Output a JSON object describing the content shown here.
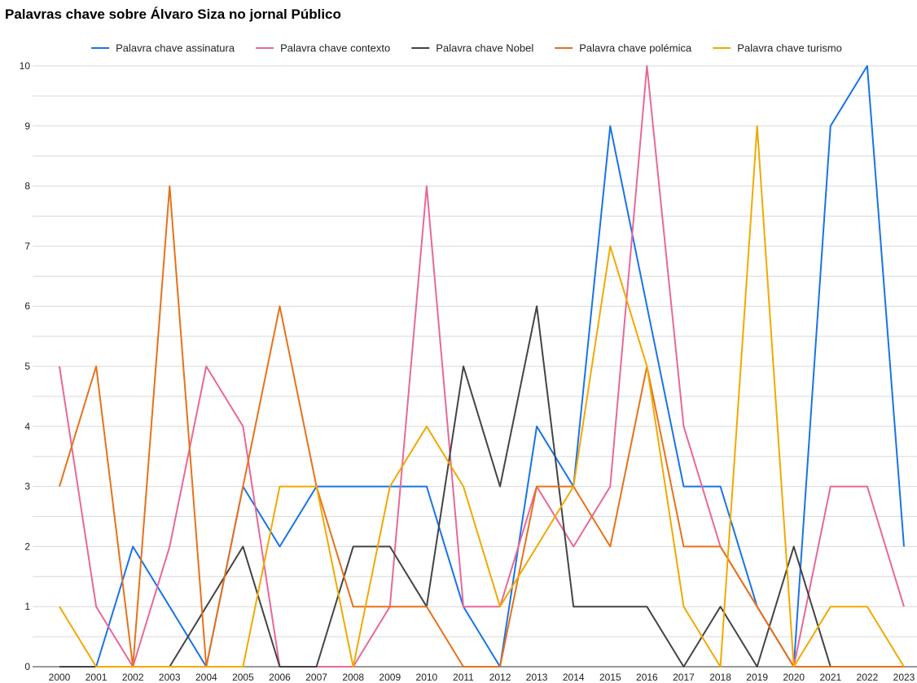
{
  "chart_data": {
    "type": "line",
    "title": "Palavras chave sobre Álvaro Siza no jornal Público",
    "xlabel": "",
    "ylabel": "",
    "x": [
      "2000",
      "2001",
      "2002",
      "2003",
      "2004",
      "2005",
      "2006",
      "2007",
      "2008",
      "2009",
      "2010",
      "2011",
      "2012",
      "2013",
      "2014",
      "2015",
      "2016",
      "2017",
      "2018",
      "2019",
      "2020",
      "2021",
      "2022",
      "2023"
    ],
    "ylim": [
      0,
      10
    ],
    "yticks": [
      0,
      1,
      2,
      3,
      4,
      5,
      6,
      7,
      8,
      9,
      10
    ],
    "grid": true,
    "legend_position": "top",
    "series": [
      {
        "name": "Palavra chave assinatura",
        "color": "#1a73e8",
        "values": [
          0,
          0,
          2,
          1,
          0,
          3,
          2,
          3,
          3,
          3,
          3,
          1,
          0,
          4,
          3,
          9,
          6,
          3,
          3,
          1,
          0,
          9,
          10,
          2
        ]
      },
      {
        "name": "Palavra chave contexto",
        "color": "#e8689a",
        "values": [
          5,
          1,
          0,
          2,
          5,
          4,
          0,
          0,
          0,
          1,
          8,
          1,
          1,
          3,
          2,
          3,
          10,
          4,
          2,
          1,
          0,
          3,
          3,
          1
        ]
      },
      {
        "name": "Palavra chave Nobel",
        "color": "#444444",
        "values": [
          0,
          0,
          0,
          0,
          1,
          2,
          0,
          0,
          2,
          2,
          1,
          5,
          3,
          6,
          1,
          1,
          1,
          0,
          1,
          0,
          2,
          0,
          0,
          0
        ]
      },
      {
        "name": "Palavra chave polémica",
        "color": "#e8711a",
        "values": [
          3,
          5,
          0,
          8,
          0,
          3,
          6,
          3,
          1,
          1,
          1,
          0,
          0,
          3,
          3,
          2,
          5,
          2,
          2,
          1,
          0,
          0,
          0,
          0
        ]
      },
      {
        "name": "Palavra chave turismo",
        "color": "#f2a900",
        "values": [
          1,
          0,
          0,
          0,
          0,
          0,
          3,
          3,
          0,
          3,
          4,
          3,
          1,
          2,
          3,
          7,
          5,
          1,
          0,
          9,
          0,
          1,
          1,
          0
        ]
      }
    ]
  }
}
